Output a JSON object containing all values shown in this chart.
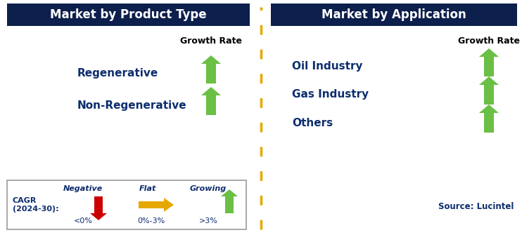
{
  "left_title": "Market by Product Type",
  "right_title": "Market by Application",
  "left_items": [
    "Regenerative",
    "Non-Regenerative"
  ],
  "right_items": [
    "Oil Industry",
    "Gas Industry",
    "Others"
  ],
  "growth_rate_label": "Growth Rate",
  "header_bg_color": "#0d1f4c",
  "header_text_color": "#ffffff",
  "item_text_color": "#0d2d6e",
  "growth_rate_text_color": "#000000",
  "up_arrow_color": "#6abf45",
  "down_arrow_color": "#cc0000",
  "flat_arrow_color": "#e6a800",
  "divider_color": "#e6a800",
  "legend_border_color": "#999999",
  "source_text": "Source: Lucintel",
  "legend_cagr_text": "CAGR\n(2024-30):",
  "legend_negative_label": "Negative",
  "legend_negative_value": "<0%",
  "legend_flat_label": "Flat",
  "legend_flat_value": "0%-3%",
  "legend_growing_label": "Growing",
  "legend_growing_value": ">3%",
  "bg_color": "#ffffff",
  "fig_width": 7.42,
  "fig_height": 3.35,
  "dpi": 100
}
